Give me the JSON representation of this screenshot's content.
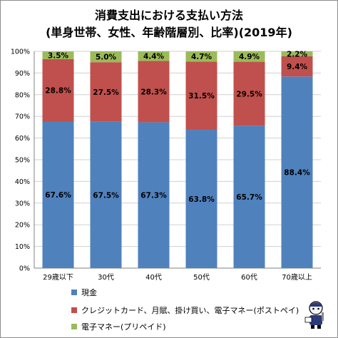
{
  "colors": {
    "cash": "#4f81bd",
    "credit": "#c0504d",
    "prepaid": "#9bbb59",
    "grid": "#d0d0d0",
    "axis": "#808080"
  },
  "chart_data": {
    "type": "bar",
    "stacked": true,
    "title": "消費支出における支払い方法",
    "subtitle": "(単身世帯、女性、年齢階層別、比率)(2019年)",
    "categories": [
      "29歳以下",
      "30代",
      "40代",
      "50代",
      "60代",
      "70歳以上"
    ],
    "series": [
      {
        "name": "現金",
        "values": [
          67.6,
          67.5,
          67.3,
          63.8,
          65.7,
          88.4
        ],
        "labels": [
          "67.6%",
          "67.5%",
          "67.3%",
          "63.8%",
          "65.7%",
          "88.4%"
        ]
      },
      {
        "name": "クレジットカード、月賦、掛け買い、電子マネー(ポストペイ)",
        "values": [
          28.8,
          27.5,
          28.3,
          31.5,
          29.5,
          9.4
        ],
        "labels": [
          "28.8%",
          "27.5%",
          "28.3%",
          "31.5%",
          "29.5%",
          "9.4%"
        ]
      },
      {
        "name": "電子マネー(プリペイド)",
        "values": [
          3.5,
          5.0,
          4.4,
          4.7,
          4.9,
          2.2
        ],
        "labels": [
          "3.5%",
          "5.0%",
          "4.4%",
          "4.7%",
          "4.9%",
          "2.2%"
        ]
      }
    ],
    "y_ticks": [
      "0%",
      "10%",
      "20%",
      "30%",
      "40%",
      "50%",
      "60%",
      "70%",
      "80%",
      "90%",
      "100%"
    ],
    "ylim": [
      0,
      100
    ],
    "grid": true,
    "legend_position": "bottom"
  }
}
